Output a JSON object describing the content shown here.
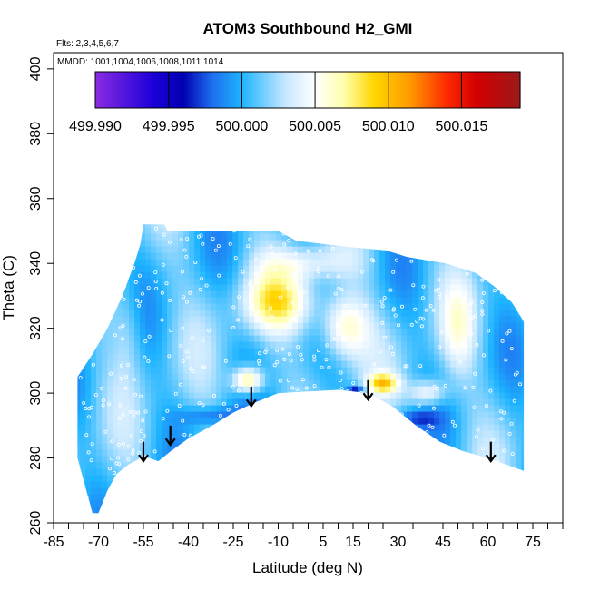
{
  "chart_data": {
    "type": "heatmap",
    "title": "ATOM3 Southbound H2_GMI",
    "annotations": {
      "flights": "Flts: 2,3,4,5,6,7",
      "dates": "MMDD: 1001,1004,1006,1008,1011,1014"
    },
    "xlabel": "Latitude (deg N)",
    "ylabel": "Theta (C)",
    "xlim": [
      -85,
      85
    ],
    "ylim": [
      260,
      405
    ],
    "x_tick_labels": [
      "-85",
      "-70",
      "-55",
      "-40",
      "-25",
      "-10",
      "5",
      "15",
      "30",
      "45",
      "60",
      "75"
    ],
    "x_tick_values": [
      -85,
      -70,
      -55,
      -40,
      -25,
      -10,
      5,
      15,
      30,
      45,
      60,
      75
    ],
    "x_minor_ticks": [
      -80,
      -75,
      -65,
      -60,
      -50,
      -45,
      -35,
      -30,
      -20,
      -15,
      -5,
      0,
      10,
      20,
      25,
      35,
      40,
      50,
      55,
      65,
      70,
      80,
      85
    ],
    "y_tick_labels": [
      "260",
      "280",
      "300",
      "320",
      "340",
      "360",
      "380",
      "400"
    ],
    "y_tick_values": [
      260,
      280,
      300,
      320,
      340,
      360,
      380,
      400
    ],
    "colorbar": {
      "tick_labels": [
        "499.990",
        "499.995",
        "500.000",
        "500.005",
        "500.010",
        "500.015"
      ],
      "tick_values": [
        499.99,
        499.995,
        500.0,
        500.005,
        500.01,
        500.015
      ],
      "range": [
        499.99,
        500.019
      ],
      "stops": [
        {
          "value": 499.99,
          "color": "#8a2be2"
        },
        {
          "value": 499.994,
          "color": "#1a00d8"
        },
        {
          "value": 499.996,
          "color": "#0000b0"
        },
        {
          "value": 499.998,
          "color": "#1e6ff0"
        },
        {
          "value": 500.0,
          "color": "#1eb4ff"
        },
        {
          "value": 500.003,
          "color": "#c8e8ff"
        },
        {
          "value": 500.005,
          "color": "#ffffff"
        },
        {
          "value": 500.007,
          "color": "#ffffaa"
        },
        {
          "value": 500.009,
          "color": "#ffd700"
        },
        {
          "value": 500.0115,
          "color": "#ff9900"
        },
        {
          "value": 500.014,
          "color": "#ff2a00"
        },
        {
          "value": 500.016,
          "color": "#d40000"
        },
        {
          "value": 500.019,
          "color": "#9a1a1a"
        }
      ]
    },
    "field": {
      "background_value": 500.001,
      "floor": [
        {
          "lat": -72,
          "theta": 263
        },
        {
          "lat": -70,
          "theta": 263
        },
        {
          "lat": -67,
          "theta": 270
        },
        {
          "lat": -64,
          "theta": 275
        },
        {
          "lat": -60,
          "theta": 278
        },
        {
          "lat": -56,
          "theta": 280
        },
        {
          "lat": -53,
          "theta": 280
        },
        {
          "lat": -50,
          "theta": 279
        },
        {
          "lat": -46,
          "theta": 282
        },
        {
          "lat": -40,
          "theta": 286
        },
        {
          "lat": -32,
          "theta": 290
        },
        {
          "lat": -25,
          "theta": 294
        },
        {
          "lat": -18,
          "theta": 297
        },
        {
          "lat": -10,
          "theta": 300
        },
        {
          "lat": 0,
          "theta": 300.5
        },
        {
          "lat": 10,
          "theta": 301
        },
        {
          "lat": 20,
          "theta": 300
        },
        {
          "lat": 28,
          "theta": 296
        },
        {
          "lat": 36,
          "theta": 290
        },
        {
          "lat": 44,
          "theta": 285
        },
        {
          "lat": 52,
          "theta": 282
        },
        {
          "lat": 60,
          "theta": 280
        },
        {
          "lat": 66,
          "theta": 278
        },
        {
          "lat": 72,
          "theta": 276
        }
      ],
      "top": [
        {
          "lat": -77,
          "theta": 305
        },
        {
          "lat": -72,
          "theta": 312
        },
        {
          "lat": -67,
          "theta": 320
        },
        {
          "lat": -62,
          "theta": 330
        },
        {
          "lat": -58,
          "theta": 340
        },
        {
          "lat": -56,
          "theta": 346
        },
        {
          "lat": -55,
          "theta": 352
        },
        {
          "lat": -48,
          "theta": 352
        },
        {
          "lat": -47,
          "theta": 350
        },
        {
          "lat": -10,
          "theta": 350
        },
        {
          "lat": -4,
          "theta": 347
        },
        {
          "lat": 14,
          "theta": 345
        },
        {
          "lat": 26,
          "theta": 344
        },
        {
          "lat": 33,
          "theta": 342
        },
        {
          "lat": 46,
          "theta": 340
        },
        {
          "lat": 56,
          "theta": 337
        },
        {
          "lat": 62,
          "theta": 333
        },
        {
          "lat": 68,
          "theta": 328
        },
        {
          "lat": 72,
          "theta": 322
        }
      ],
      "features": [
        {
          "lat": -20,
          "theta": 304,
          "value": 500.009,
          "width": 5,
          "height": 4
        },
        {
          "lat": -10,
          "theta": 328,
          "value": 500.007,
          "width": 12,
          "height": 9
        },
        {
          "lat": 12,
          "theta": 320,
          "value": 500.007,
          "width": 8,
          "height": 10
        },
        {
          "lat": 25,
          "theta": 303,
          "value": 500.008,
          "width": 5,
          "height": 3
        },
        {
          "lat": 40,
          "theta": 300,
          "value": 500.006,
          "width": 6,
          "height": 4
        },
        {
          "lat": 16,
          "theta": 301,
          "value": 499.996,
          "width": 3,
          "height": 1.5
        },
        {
          "lat": -32,
          "theta": 293,
          "value": 499.998,
          "width": 10,
          "height": 3
        },
        {
          "lat": 35,
          "theta": 292,
          "value": 499.998,
          "width": 8,
          "height": 3
        },
        {
          "lat": -60,
          "theta": 320,
          "value": 500.003,
          "width": 5,
          "height": 15
        },
        {
          "lat": 50,
          "theta": 320,
          "value": 500.004,
          "width": 6,
          "height": 15
        },
        {
          "lat": 0,
          "theta": 340,
          "value": 500.004,
          "width": 15,
          "height": 5
        }
      ]
    },
    "arrows": [
      {
        "lat": -55,
        "theta_start": 285,
        "theta_end": 279
      },
      {
        "lat": -46,
        "theta_start": 290,
        "theta_end": 284
      },
      {
        "lat": -19,
        "theta_start": 302,
        "theta_end": 296
      },
      {
        "lat": 20,
        "theta_start": 304,
        "theta_end": 298
      },
      {
        "lat": 61,
        "theta_start": 285,
        "theta_end": 279
      }
    ]
  }
}
